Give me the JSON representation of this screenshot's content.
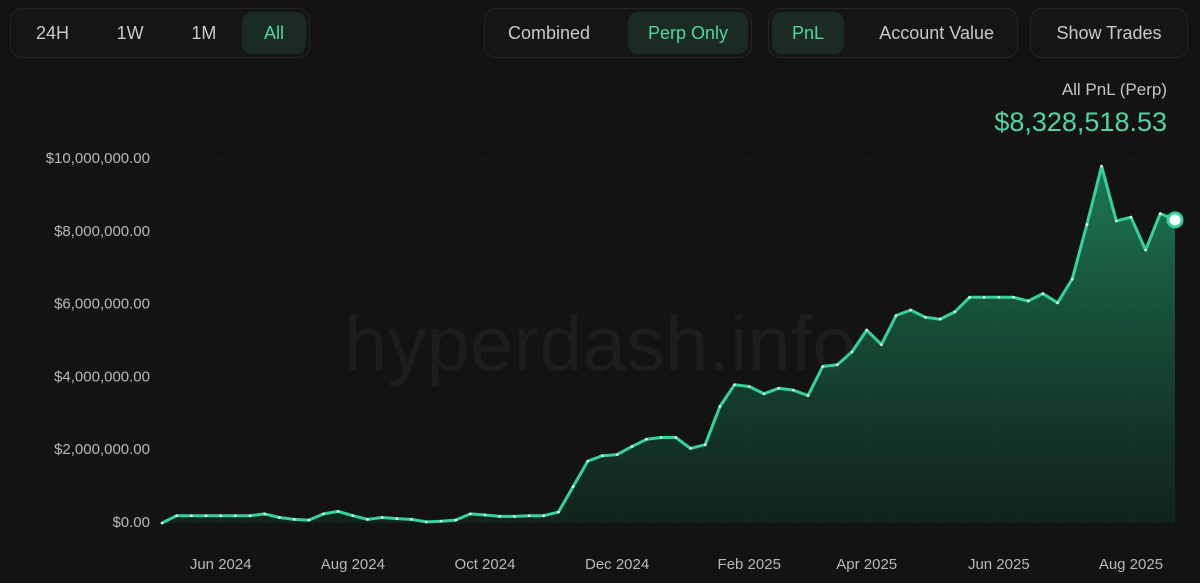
{
  "controls": [
    {
      "options": [
        "24H",
        "1W",
        "1M",
        "All"
      ],
      "selected": 3
    },
    {
      "options": [
        "Combined",
        "Perp Only"
      ],
      "selected": 1
    },
    {
      "options": [
        "PnL",
        "Account Value"
      ],
      "selected": 0
    },
    {
      "options": [
        "Show Trades"
      ],
      "selected": null
    }
  ],
  "header": {
    "label": "All PnL (Perp)",
    "value": "$8,328,518.53"
  },
  "chart_data": {
    "type": "area",
    "watermark": "hyperdash.info",
    "color": "#34d399",
    "grid": true,
    "categories": [
      null,
      null,
      null,
      null,
      "Jun 2024",
      null,
      null,
      null,
      null,
      null,
      null,
      null,
      null,
      "Aug 2024",
      null,
      null,
      null,
      null,
      null,
      null,
      null,
      null,
      "Oct 2024",
      null,
      null,
      null,
      null,
      null,
      null,
      null,
      null,
      "Dec 2024",
      null,
      null,
      null,
      null,
      null,
      null,
      null,
      null,
      "Feb 2025",
      null,
      null,
      null,
      null,
      null,
      null,
      null,
      "Apr 2025",
      null,
      null,
      null,
      null,
      null,
      null,
      null,
      null,
      "Jun 2025",
      null,
      null,
      null,
      null,
      null,
      null,
      null,
      null,
      "Aug 2025",
      null,
      null,
      null
    ],
    "values": [
      0,
      200000,
      200000,
      200000,
      200000,
      200000,
      200000,
      250000,
      150000,
      100000,
      80000,
      250000,
      320000,
      200000,
      100000,
      150000,
      120000,
      100000,
      30000,
      50000,
      80000,
      250000,
      220000,
      180000,
      180000,
      200000,
      200000,
      300000,
      1000000,
      1700000,
      1850000,
      1880000,
      2100000,
      2300000,
      2350000,
      2350000,
      2050000,
      2150000,
      3200000,
      3800000,
      3750000,
      3550000,
      3700000,
      3650000,
      3500000,
      4300000,
      4350000,
      4700000,
      5300000,
      4900000,
      5700000,
      5850000,
      5650000,
      5600000,
      5800000,
      6200000,
      6200000,
      6200000,
      6200000,
      6100000,
      6300000,
      6050000,
      6700000,
      8200000,
      9800000,
      8300000,
      8400000,
      7500000,
      8500000,
      8328518.53
    ],
    "ylim": [
      0,
      10000000
    ],
    "yticks": [
      {
        "value": 0,
        "label": "$0.00"
      },
      {
        "value": 2000000,
        "label": "$2,000,000.00"
      },
      {
        "value": 4000000,
        "label": "$4,000,000.00"
      },
      {
        "value": 6000000,
        "label": "$6,000,000.00"
      },
      {
        "value": 8000000,
        "label": "$8,000,000.00"
      },
      {
        "value": 10000000,
        "label": "$10,000,000.00"
      }
    ]
  }
}
